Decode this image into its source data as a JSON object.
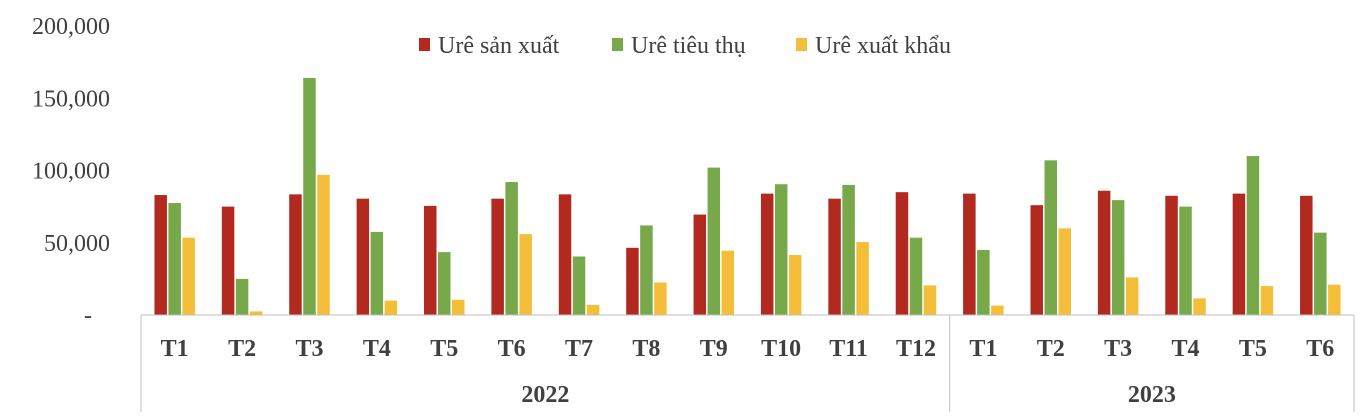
{
  "chart_data": {
    "type": "bar",
    "y_tick_labels": [
      "-",
      "50,000",
      "100,000",
      "150,000",
      "200,000"
    ],
    "ylim": [
      0,
      200000
    ],
    "grid": false,
    "legend_position": "top",
    "categories": [
      "T1",
      "T2",
      "T3",
      "T4",
      "T5",
      "T6",
      "T7",
      "T8",
      "T9",
      "T10",
      "T11",
      "T12",
      "T1",
      "T2",
      "T3",
      "T4",
      "T5",
      "T6"
    ],
    "groups": [
      {
        "label": "2022",
        "count": 12
      },
      {
        "label": "2023",
        "count": 6
      }
    ],
    "series": [
      {
        "name": "Urê sản xuất",
        "color": "#b22a1f",
        "values": [
          83000,
          75000,
          83500,
          80500,
          75500,
          80500,
          83500,
          46500,
          69500,
          84000,
          80500,
          85000,
          84000,
          76000,
          86000,
          82500,
          84000,
          82500
        ]
      },
      {
        "name": "Urê tiêu thụ",
        "color": "#77a84a",
        "values": [
          77500,
          25000,
          164000,
          57500,
          43500,
          92000,
          40500,
          62000,
          102000,
          90500,
          90000,
          53500,
          45000,
          107000,
          79500,
          75000,
          110000,
          57000
        ]
      },
      {
        "name": "Urê xuất khẩu",
        "color": "#f5be3a",
        "values": [
          53500,
          2500,
          97000,
          10000,
          10500,
          56000,
          7000,
          22500,
          44500,
          41500,
          50500,
          20500,
          6500,
          60000,
          26000,
          11500,
          20000,
          21000
        ]
      }
    ]
  }
}
